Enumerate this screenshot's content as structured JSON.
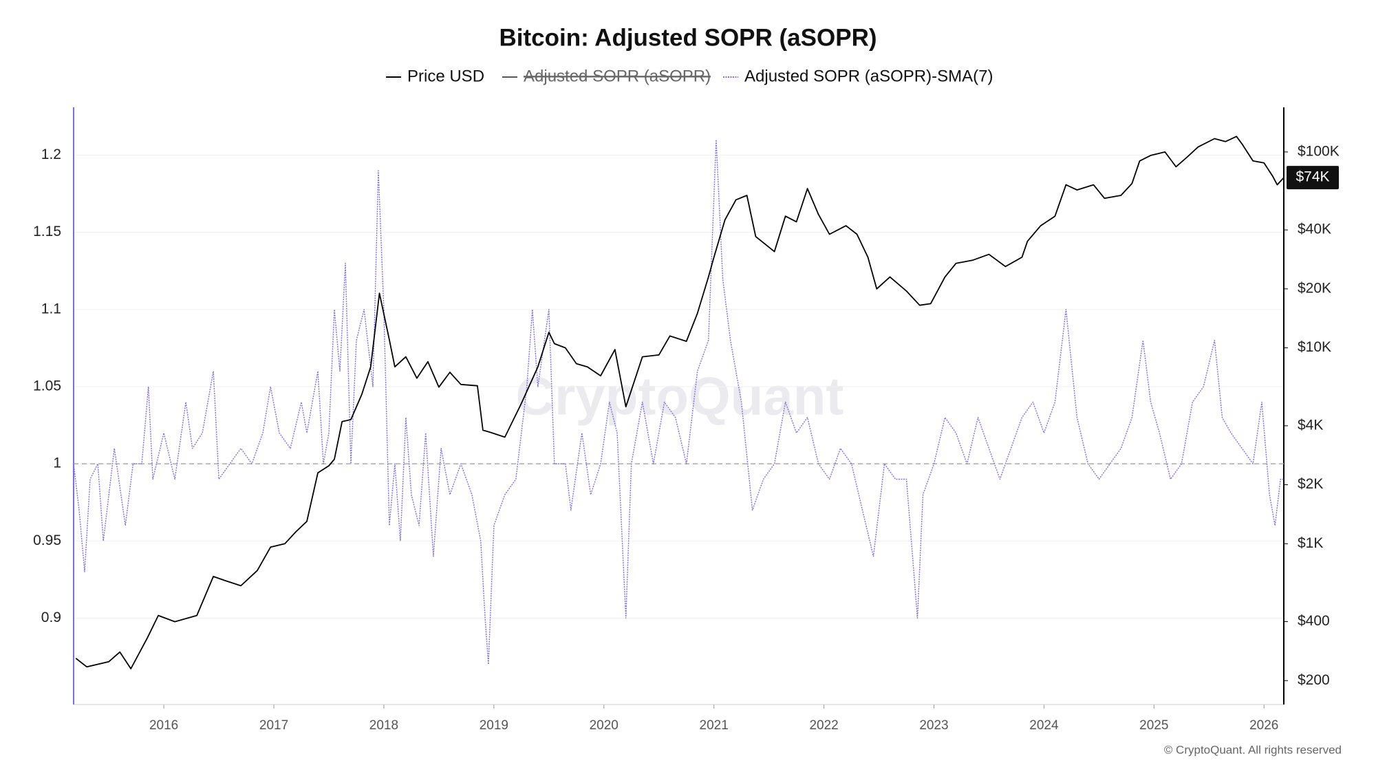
{
  "chart_data": {
    "type": "line",
    "title": "Bitcoin: Adjusted SOPR (aSOPR)",
    "watermark": "CryptoQuant",
    "credit": "© CryptoQuant. All rights reserved",
    "xlim": [
      2015.18,
      2026.18
    ],
    "xticks": [
      2016,
      2017,
      2018,
      2019,
      2020,
      2021,
      2022,
      2023,
      2024,
      2025,
      2026
    ],
    "ylim": [
      0.844,
      1.231
    ],
    "yticks": [
      0.9,
      0.95,
      1,
      1.05,
      1.1,
      1.15,
      1.2
    ],
    "y2lim": [
      151,
      169000
    ],
    "y2_log": true,
    "y2ticks": [
      {
        "value": 200,
        "label": "$200"
      },
      {
        "value": 400,
        "label": "$400"
      },
      {
        "value": 1000,
        "label": "$1K"
      },
      {
        "value": 2000,
        "label": "$2K"
      },
      {
        "value": 4000,
        "label": "$4K"
      },
      {
        "value": 10000,
        "label": "$10K"
      },
      {
        "value": 20000,
        "label": "$20K"
      },
      {
        "value": 40000,
        "label": "$40K"
      },
      {
        "value": 100000,
        "label": "$100K"
      }
    ],
    "reference_line": 1,
    "grid": true,
    "last_price": {
      "value": 74000,
      "label": "$74K"
    },
    "series": [
      {
        "name": "Price USD",
        "color": "#000000",
        "axis": "y2",
        "style": "solid",
        "x": [
          2015.2,
          2015.3,
          2015.5,
          2015.6,
          2015.7,
          2015.85,
          2015.95,
          2016.1,
          2016.3,
          2016.45,
          2016.55,
          2016.7,
          2016.85,
          2016.97,
          2017.1,
          2017.2,
          2017.3,
          2017.4,
          2017.5,
          2017.55,
          2017.62,
          2017.7,
          2017.8,
          2017.88,
          2017.96,
          2018.05,
          2018.1,
          2018.2,
          2018.3,
          2018.4,
          2018.5,
          2018.6,
          2018.7,
          2018.85,
          2018.9,
          2018.97,
          2019.1,
          2019.25,
          2019.4,
          2019.5,
          2019.55,
          2019.65,
          2019.75,
          2019.85,
          2019.97,
          2020.1,
          2020.2,
          2020.35,
          2020.5,
          2020.6,
          2020.75,
          2020.85,
          2020.95,
          2021.0,
          2021.1,
          2021.2,
          2021.3,
          2021.38,
          2021.55,
          2021.65,
          2021.75,
          2021.85,
          2021.95,
          2022.05,
          2022.2,
          2022.3,
          2022.4,
          2022.48,
          2022.6,
          2022.75,
          2022.87,
          2022.97,
          2023.1,
          2023.2,
          2023.35,
          2023.5,
          2023.65,
          2023.8,
          2023.85,
          2023.97,
          2024.1,
          2024.2,
          2024.3,
          2024.45,
          2024.55,
          2024.7,
          2024.8,
          2024.87,
          2024.97,
          2025.1,
          2025.2,
          2025.3,
          2025.4,
          2025.55,
          2025.65,
          2025.75,
          2025.8,
          2025.9,
          2026.0,
          2026.08,
          2026.12,
          2026.18
        ],
        "values": [
          260,
          235,
          250,
          280,
          230,
          330,
          430,
          400,
          430,
          680,
          650,
          610,
          730,
          960,
          1000,
          1150,
          1300,
          2300,
          2500,
          2700,
          4200,
          4300,
          5800,
          8000,
          19000,
          11000,
          8000,
          9000,
          7000,
          8500,
          6300,
          7500,
          6500,
          6400,
          3800,
          3700,
          3500,
          5200,
          8000,
          12000,
          10500,
          10000,
          8300,
          8000,
          7200,
          9800,
          5000,
          9000,
          9200,
          11500,
          10800,
          15000,
          23000,
          29000,
          45000,
          57000,
          60000,
          37000,
          31000,
          47000,
          44000,
          65000,
          48000,
          38000,
          42000,
          38000,
          29000,
          20000,
          23000,
          19500,
          16500,
          16800,
          23000,
          27000,
          28000,
          30000,
          26000,
          29000,
          35000,
          42000,
          47000,
          68000,
          64000,
          68000,
          58000,
          60000,
          69000,
          90000,
          96000,
          100000,
          84000,
          94000,
          106000,
          117000,
          113000,
          120000,
          110000,
          90000,
          88000,
          75000,
          68000,
          74000
        ]
      },
      {
        "name": "Adjusted SOPR (aSOPR)",
        "color": "#555555",
        "style": "solid",
        "visible": false
      },
      {
        "name": "Adjusted SOPR (aSOPR)-SMA(7)",
        "color": "#7c6cf0",
        "style": "dotted",
        "x": [
          2015.18,
          2015.23,
          2015.28,
          2015.33,
          2015.4,
          2015.45,
          2015.55,
          2015.65,
          2015.72,
          2015.8,
          2015.86,
          2015.9,
          2016.0,
          2016.1,
          2016.2,
          2016.26,
          2016.35,
          2016.45,
          2016.5,
          2016.6,
          2016.7,
          2016.8,
          2016.9,
          2016.97,
          2017.05,
          2017.15,
          2017.25,
          2017.3,
          2017.4,
          2017.45,
          2017.5,
          2017.55,
          2017.6,
          2017.65,
          2017.7,
          2017.75,
          2017.82,
          2017.9,
          2017.95,
          2018.0,
          2018.05,
          2018.1,
          2018.15,
          2018.2,
          2018.25,
          2018.32,
          2018.38,
          2018.45,
          2018.52,
          2018.6,
          2018.7,
          2018.8,
          2018.88,
          2018.92,
          2018.95,
          2019.0,
          2019.1,
          2019.2,
          2019.3,
          2019.35,
          2019.4,
          2019.5,
          2019.55,
          2019.65,
          2019.7,
          2019.8,
          2019.88,
          2019.97,
          2020.05,
          2020.12,
          2020.2,
          2020.25,
          2020.35,
          2020.45,
          2020.55,
          2020.65,
          2020.75,
          2020.85,
          2020.95,
          2021.02,
          2021.08,
          2021.15,
          2021.25,
          2021.35,
          2021.45,
          2021.55,
          2021.65,
          2021.75,
          2021.85,
          2021.95,
          2022.05,
          2022.15,
          2022.25,
          2022.35,
          2022.45,
          2022.55,
          2022.65,
          2022.75,
          2022.85,
          2022.9,
          2023.0,
          2023.1,
          2023.2,
          2023.3,
          2023.4,
          2023.5,
          2023.6,
          2023.7,
          2023.8,
          2023.9,
          2024.0,
          2024.1,
          2024.2,
          2024.3,
          2024.4,
          2024.5,
          2024.6,
          2024.7,
          2024.8,
          2024.9,
          2024.97,
          2025.05,
          2025.15,
          2025.25,
          2025.35,
          2025.45,
          2025.55,
          2025.62,
          2025.7,
          2025.8,
          2025.9,
          2025.98,
          2026.05,
          2026.1,
          2026.15,
          2026.18
        ],
        "values": [
          1.0,
          0.97,
          0.93,
          0.99,
          1.0,
          0.95,
          1.01,
          0.96,
          1.0,
          1.0,
          1.05,
          0.99,
          1.02,
          0.99,
          1.04,
          1.01,
          1.02,
          1.06,
          0.99,
          1.0,
          1.01,
          1.0,
          1.02,
          1.05,
          1.02,
          1.01,
          1.04,
          1.02,
          1.06,
          1.0,
          1.02,
          1.1,
          1.06,
          1.13,
          1.0,
          1.08,
          1.1,
          1.05,
          1.19,
          1.1,
          0.96,
          1.0,
          0.95,
          1.03,
          0.98,
          0.96,
          1.02,
          0.94,
          1.01,
          0.98,
          1.0,
          0.98,
          0.95,
          0.9,
          0.87,
          0.96,
          0.98,
          0.99,
          1.05,
          1.1,
          1.05,
          1.1,
          1.0,
          1.0,
          0.97,
          1.02,
          0.98,
          1.0,
          1.04,
          1.02,
          0.9,
          1.0,
          1.04,
          1.0,
          1.04,
          1.03,
          1.0,
          1.06,
          1.08,
          1.21,
          1.12,
          1.08,
          1.04,
          0.97,
          0.99,
          1.0,
          1.04,
          1.02,
          1.03,
          1.0,
          0.99,
          1.01,
          1.0,
          0.97,
          0.94,
          1.0,
          0.99,
          0.99,
          0.9,
          0.98,
          1.0,
          1.03,
          1.02,
          1.0,
          1.03,
          1.01,
          0.99,
          1.01,
          1.03,
          1.04,
          1.02,
          1.04,
          1.1,
          1.03,
          1.0,
          0.99,
          1.0,
          1.01,
          1.03,
          1.08,
          1.04,
          1.02,
          0.99,
          1.0,
          1.04,
          1.05,
          1.08,
          1.03,
          1.02,
          1.01,
          1.0,
          1.04,
          0.98,
          0.96,
          0.99,
          0.99
        ]
      }
    ]
  }
}
